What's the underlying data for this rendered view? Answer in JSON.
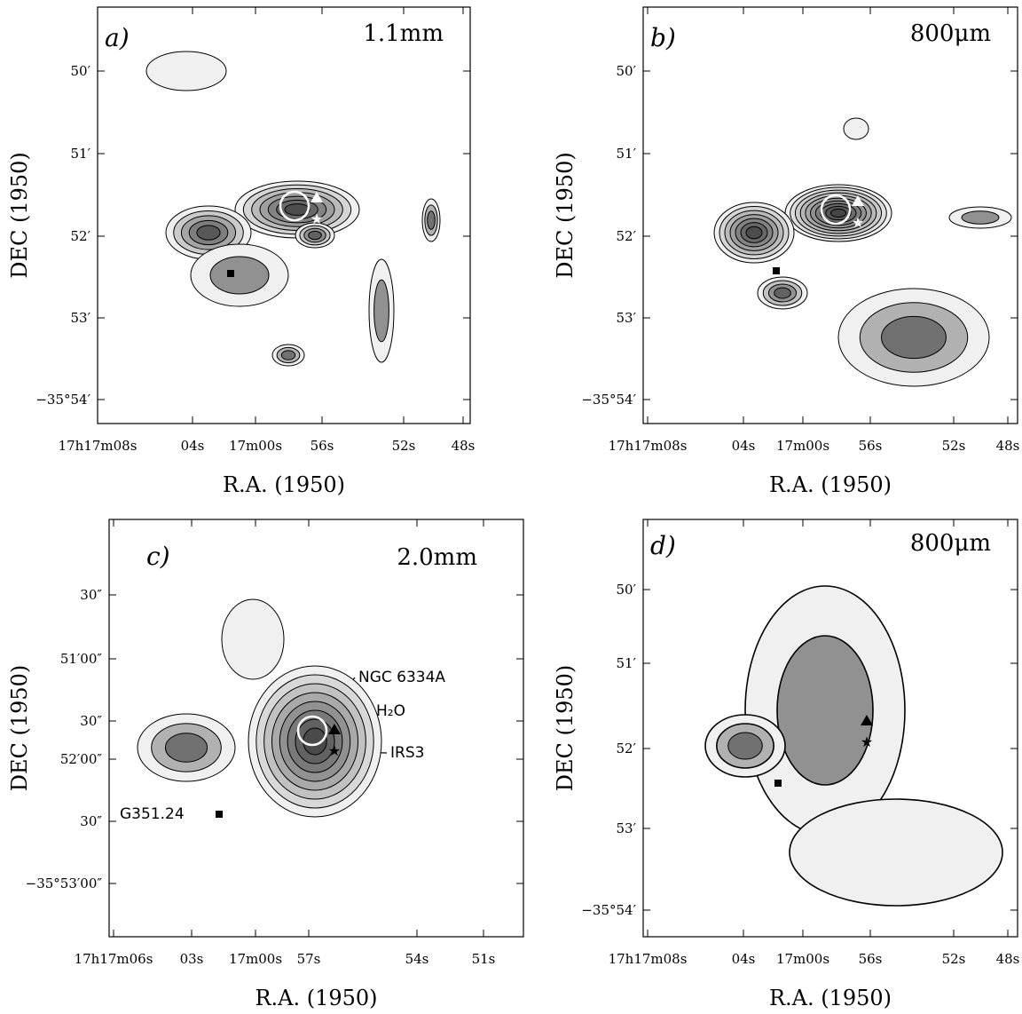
{
  "panels": [
    {
      "label": "a)",
      "band": "1.1mm",
      "x_axis_label": "R.A. (1950)",
      "y_axis_label": "DEC (1950)",
      "x_ticks": [
        "17h17m08s",
        "04s",
        "17m00s",
        "56s",
        "52s",
        "48s"
      ],
      "y_ticks": [
        "50′",
        "51′",
        "52′",
        "53′",
        "−35°54′"
      ]
    },
    {
      "label": "b)",
      "band": "800μm",
      "x_axis_label": "R.A. (1950)",
      "y_axis_label": "DEC (1950)",
      "x_ticks": [
        "17h17m08s",
        "04s",
        "17m00s",
        "56s",
        "52s",
        "48s"
      ],
      "y_ticks": [
        "50′",
        "51′",
        "52′",
        "53′",
        "−35°54′"
      ]
    },
    {
      "label": "c)",
      "band": "2.0mm",
      "x_axis_label": "R.A. (1950)",
      "y_axis_label": "DEC (1950)",
      "x_ticks": [
        "17h17m06s",
        "03s",
        "17m00s",
        "57s",
        "54s",
        "51s"
      ],
      "y_ticks": [
        "30″",
        "51′00″",
        "30″",
        "52′00″",
        "30″",
        "−35°53′00″"
      ]
    },
    {
      "label": "d)",
      "band": "800μm",
      "x_axis_label": "R.A. (1950)",
      "y_axis_label": "DEC (1950)",
      "x_ticks": [
        "17h17m08s",
        "04s",
        "17m00s",
        "56s",
        "52s",
        "48s"
      ],
      "y_ticks": [
        "50′",
        "51′",
        "52′",
        "53′",
        "−35°54′"
      ]
    }
  ],
  "annotations": [
    "NGC 6334A",
    "H₂O",
    "IRS3",
    "G351.24"
  ]
}
